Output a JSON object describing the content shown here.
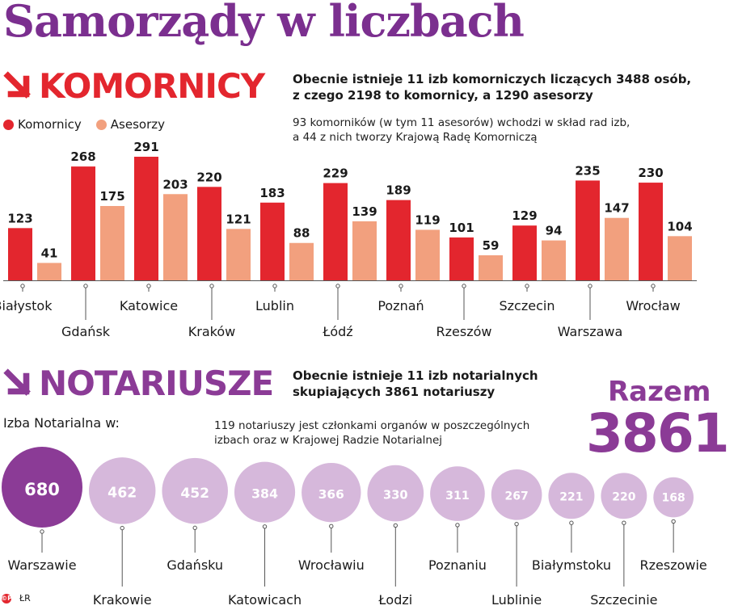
{
  "title": "Samorządy w liczbach",
  "komornicy": {
    "heading": "KOMORNICY",
    "desc_line1": "Obecnie istnieje 11 izb komorniczych liczących 3488 osób,",
    "desc_line2": "z czego 2198 to komornicy, a 1290 asesorzy",
    "note_line1": "93 komorników (w tym 11 asesorów) wchodzi w skład rad izb,",
    "note_line2": "a 44 z nich tworzy Krajową Radę Komorniczą"
  },
  "notariusze": {
    "heading": "NOTARIUSZE",
    "desc_line1": "Obecnie istnieje 11 izb notarialnych",
    "desc_line2": "skupiających 3861 notariuszy",
    "note_line1": "119 notariuszy jest członkami organów w poszczególnych",
    "note_line2": "izbach oraz w Krajowej Radzie Notarialnej",
    "izba_label": "Izba Notarialna w:",
    "total_label": "Razem",
    "total_value": "3861"
  },
  "footer": {
    "copyright": "©P",
    "credit": "ŁR"
  },
  "colors": {
    "title": "#7b2f8f",
    "komornicy": "#e3262e",
    "asesorzy": "#f2a07e",
    "notariusze_accent": "#8b3b96",
    "bubble_largest": "#8b3b96",
    "bubble": "#d6b8db"
  },
  "icons": {
    "section_arrow": "arrow-down-right-icon"
  },
  "chart_data": [
    {
      "type": "bar",
      "categories": [
        "Białystok",
        "Gdańsk",
        "Katowice",
        "Kraków",
        "Lublin",
        "Łódź",
        "Poznań",
        "Rzeszów",
        "Szczecin",
        "Warszawa",
        "Wrocław"
      ],
      "series": [
        {
          "name": "Komornicy",
          "values": [
            123,
            268,
            291,
            220,
            183,
            229,
            189,
            101,
            129,
            235,
            230
          ]
        },
        {
          "name": "Asesorzy",
          "values": [
            41,
            175,
            203,
            121,
            88,
            139,
            119,
            59,
            94,
            147,
            104
          ]
        }
      ],
      "legend": "top-left",
      "grid": false
    },
    {
      "type": "bubble",
      "categories": [
        "Warszawie",
        "Krakowie",
        "Gdańsku",
        "Katowicach",
        "Wrocławiu",
        "Łodzi",
        "Poznaniu",
        "Lublinie",
        "Białymstoku",
        "Szczecinie",
        "Rzeszowie"
      ],
      "values": [
        680,
        462,
        452,
        384,
        366,
        330,
        311,
        267,
        221,
        220,
        168
      ]
    }
  ]
}
